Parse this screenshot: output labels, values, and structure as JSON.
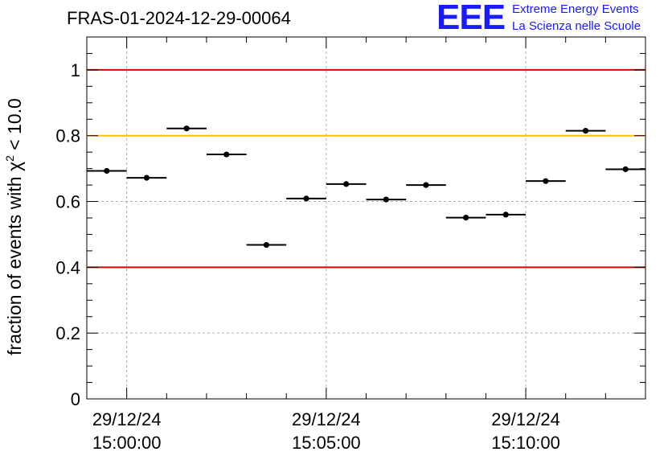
{
  "title": "FRAS-01-2024-12-29-00064",
  "logo": {
    "mark": "EEE",
    "line1": "Extreme Energy Events",
    "line2": "La Scienza nelle Scuole"
  },
  "colors": {
    "red_line": "#e00000",
    "yellow_line": "#ffc000",
    "logo": "#1a1aff",
    "points": "#000000",
    "grid": "#b0b0b0"
  },
  "chart_data": {
    "type": "scatter",
    "title": "FRAS-01-2024-12-29-00064",
    "ylabel_prefix": "fraction of events with ",
    "ylabel_symbol": "χ",
    "ylabel_sup": "2",
    "ylabel_suffix": " < 10.0",
    "ylim": [
      0,
      1.1
    ],
    "xlim": [
      "14:59:00",
      "15:13:00"
    ],
    "yticks": [
      "0",
      "0.2",
      "0.4",
      "0.6",
      "0.8",
      "1"
    ],
    "ytick_values": [
      0,
      0.2,
      0.4,
      0.6,
      0.8,
      1.0
    ],
    "xticks": [
      {
        "line1": "29/12/24",
        "line2": "15:00:00",
        "time": "15:00:00"
      },
      {
        "line1": "29/12/24",
        "line2": "15:05:00",
        "time": "15:05:00"
      },
      {
        "line1": "29/12/24",
        "line2": "15:10:00",
        "time": "15:10:00"
      }
    ],
    "grid": true,
    "reference_lines": [
      {
        "y": 1.0,
        "color": "red"
      },
      {
        "y": 0.8,
        "color": "yellow"
      },
      {
        "y": 0.4,
        "color": "red"
      }
    ],
    "points": [
      {
        "start": "14:59:00",
        "end": "15:00:00",
        "y": 0.693
      },
      {
        "start": "15:00:00",
        "end": "15:01:00",
        "y": 0.672
      },
      {
        "start": "15:01:00",
        "end": "15:02:00",
        "y": 0.822
      },
      {
        "start": "15:02:00",
        "end": "15:03:00",
        "y": 0.743
      },
      {
        "start": "15:03:00",
        "end": "15:04:00",
        "y": 0.468
      },
      {
        "start": "15:04:00",
        "end": "15:05:00",
        "y": 0.609
      },
      {
        "start": "15:05:00",
        "end": "15:06:00",
        "y": 0.653
      },
      {
        "start": "15:06:00",
        "end": "15:07:00",
        "y": 0.606
      },
      {
        "start": "15:07:00",
        "end": "15:08:00",
        "y": 0.65
      },
      {
        "start": "15:08:00",
        "end": "15:09:00",
        "y": 0.551
      },
      {
        "start": "15:09:00",
        "end": "15:10:00",
        "y": 0.56
      },
      {
        "start": "15:10:00",
        "end": "15:11:00",
        "y": 0.662
      },
      {
        "start": "15:11:00",
        "end": "15:12:00",
        "y": 0.815
      },
      {
        "start": "15:12:00",
        "end": "15:13:00",
        "y": 0.698
      }
    ]
  }
}
